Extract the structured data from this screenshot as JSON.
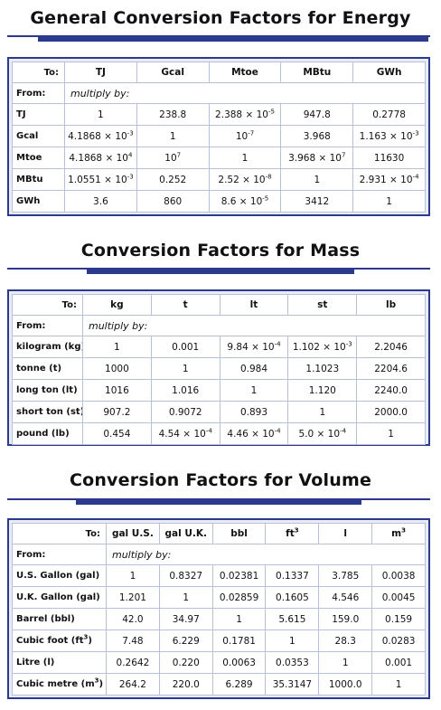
{
  "energy": {
    "title": "General Conversion Factors for Energy",
    "to_label": "To:",
    "from_label": "From:",
    "multiply_label": "multiply by:",
    "columns": [
      "TJ",
      "Gcal",
      "Mtoe",
      "MBtu",
      "GWh"
    ],
    "rows": [
      {
        "label": "TJ",
        "cells": [
          [
            "1",
            ""
          ],
          [
            "238.8",
            ""
          ],
          [
            "2.388 × 10",
            "-5"
          ],
          [
            "947.8",
            ""
          ],
          [
            "0.2778",
            ""
          ]
        ]
      },
      {
        "label": "Gcal",
        "cells": [
          [
            "4.1868 × 10",
            "-3"
          ],
          [
            "1",
            ""
          ],
          [
            "10",
            "-7"
          ],
          [
            "3.968",
            ""
          ],
          [
            "1.163 × 10",
            "-3"
          ]
        ]
      },
      {
        "label": "Mtoe",
        "cells": [
          [
            "4.1868 × 10",
            "4"
          ],
          [
            "10",
            "7"
          ],
          [
            "1",
            ""
          ],
          [
            "3.968 × 10",
            "7"
          ],
          [
            "11630",
            ""
          ]
        ]
      },
      {
        "label": "MBtu",
        "cells": [
          [
            "1.0551 × 10",
            "-3"
          ],
          [
            "0.252",
            ""
          ],
          [
            "2.52 × 10",
            "-8"
          ],
          [
            "1",
            ""
          ],
          [
            "2.931 × 10",
            "-4"
          ]
        ]
      },
      {
        "label": "GWh",
        "cells": [
          [
            "3.6",
            ""
          ],
          [
            "860",
            ""
          ],
          [
            "8.6 × 10",
            "-5"
          ],
          [
            "3412",
            ""
          ],
          [
            "1",
            ""
          ]
        ]
      }
    ]
  },
  "mass": {
    "title": "Conversion Factors for Mass",
    "to_label": "To:",
    "from_label": "From:",
    "multiply_label": "multiply by:",
    "columns": [
      "kg",
      "t",
      "lt",
      "st",
      "lb"
    ],
    "rows": [
      {
        "label": "kilogram (kg)",
        "cells": [
          [
            "1",
            ""
          ],
          [
            "0.001",
            ""
          ],
          [
            "9.84 × 10",
            "-4"
          ],
          [
            "1.102 × 10",
            "-3"
          ],
          [
            "2.2046",
            ""
          ]
        ]
      },
      {
        "label": "tonne (t)",
        "cells": [
          [
            "1000",
            ""
          ],
          [
            "1",
            ""
          ],
          [
            "0.984",
            ""
          ],
          [
            "1.1023",
            ""
          ],
          [
            "2204.6",
            ""
          ]
        ]
      },
      {
        "label": "long ton (lt)",
        "cells": [
          [
            "1016",
            ""
          ],
          [
            "1.016",
            ""
          ],
          [
            "1",
            ""
          ],
          [
            "1.120",
            ""
          ],
          [
            "2240.0",
            ""
          ]
        ]
      },
      {
        "label": "short ton (st)",
        "cells": [
          [
            "907.2",
            ""
          ],
          [
            "0.9072",
            ""
          ],
          [
            "0.893",
            ""
          ],
          [
            "1",
            ""
          ],
          [
            "2000.0",
            ""
          ]
        ]
      },
      {
        "label": "pound (lb)",
        "cells": [
          [
            "0.454",
            ""
          ],
          [
            "4.54 × 10",
            "-4"
          ],
          [
            "4.46 × 10",
            "-4"
          ],
          [
            "5.0 × 10",
            "-4"
          ],
          [
            "1",
            ""
          ]
        ]
      }
    ]
  },
  "volume": {
    "title": "Conversion Factors for Volume",
    "to_label": "To:",
    "from_label": "From:",
    "multiply_label": "multiply by:",
    "columns": [
      [
        "gal U.S.",
        ""
      ],
      [
        "gal U.K.",
        ""
      ],
      [
        "bbl",
        ""
      ],
      [
        "ft",
        "3"
      ],
      [
        "l",
        ""
      ],
      [
        "m",
        "3"
      ]
    ],
    "rows": [
      {
        "label": [
          "U.S. Gallon (gal)",
          ""
        ],
        "cells": [
          "1",
          "0.8327",
          "0.02381",
          "0.1337",
          "3.785",
          "0.0038"
        ]
      },
      {
        "label": [
          "U.K. Gallon (gal)",
          ""
        ],
        "cells": [
          "1.201",
          "1",
          "0.02859",
          "0.1605",
          "4.546",
          "0.0045"
        ]
      },
      {
        "label": [
          "Barrel (bbl)",
          ""
        ],
        "cells": [
          "42.0",
          "34.97",
          "1",
          "5.615",
          "159.0",
          "0.159"
        ]
      },
      {
        "label": [
          "Cubic foot (ft",
          "3",
          ")"
        ],
        "cells": [
          "7.48",
          "6.229",
          "0.1781",
          "1",
          "28.3",
          "0.0283"
        ]
      },
      {
        "label": [
          "Litre (l)",
          ""
        ],
        "cells": [
          "0.2642",
          "0.220",
          "0.0063",
          "0.0353",
          "1",
          "0.001"
        ]
      },
      {
        "label": [
          "Cubic metre (m",
          "3",
          ")"
        ],
        "cells": [
          "264.2",
          "220.0",
          "6.289",
          "35.3147",
          "1000.0",
          "1"
        ]
      }
    ]
  }
}
